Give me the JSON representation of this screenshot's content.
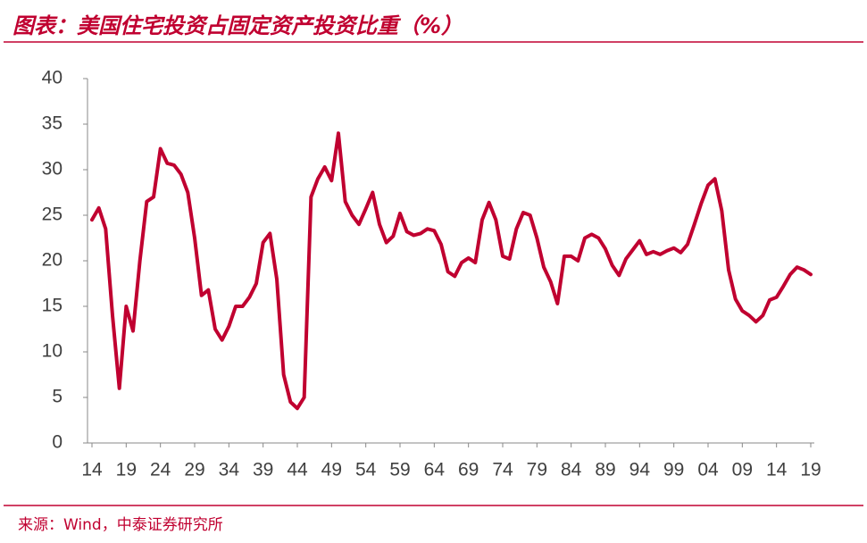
{
  "chart_data": {
    "type": "line",
    "title": "图表：美国住宅投资占固定资产投资比重（%）",
    "source": "来源：Wind，中泰证券研究所",
    "categories": [
      "14",
      null,
      null,
      null,
      null,
      "19",
      null,
      null,
      null,
      null,
      "24",
      null,
      null,
      null,
      null,
      "29",
      null,
      null,
      null,
      null,
      "34",
      null,
      null,
      null,
      null,
      "39",
      null,
      null,
      null,
      null,
      "44",
      null,
      null,
      null,
      null,
      "49",
      null,
      null,
      null,
      null,
      "54",
      null,
      null,
      null,
      null,
      "59",
      null,
      null,
      null,
      null,
      "64",
      null,
      null,
      null,
      null,
      "69",
      null,
      null,
      null,
      null,
      "74",
      null,
      null,
      null,
      null,
      "79",
      null,
      null,
      null,
      null,
      "84",
      null,
      null,
      null,
      null,
      "89",
      null,
      null,
      null,
      null,
      "94",
      null,
      null,
      null,
      null,
      "99",
      null,
      null,
      null,
      null,
      "04",
      null,
      null,
      null,
      null,
      "09",
      null,
      null,
      null,
      null,
      "14",
      null,
      null,
      null,
      null,
      "19"
    ],
    "values": [
      24.5,
      25.8,
      23.5,
      14,
      6,
      15,
      12.3,
      20,
      26.5,
      27,
      32.3,
      30.7,
      30.5,
      29.5,
      27.5,
      22.5,
      16.2,
      16.8,
      12.5,
      11.3,
      12.8,
      15,
      15,
      16,
      17.5,
      22,
      23,
      18,
      7.5,
      4.5,
      3.8,
      5,
      27,
      29,
      30.3,
      28.8,
      34,
      26.5,
      25,
      24,
      25.7,
      27.5,
      24,
      22,
      22.7,
      25.2,
      23.2,
      22.8,
      23,
      23.5,
      23.3,
      21.8,
      18.8,
      18.3,
      19.8,
      20.3,
      19.8,
      24.5,
      26.4,
      24.5,
      20.5,
      20.2,
      23.5,
      25.3,
      25,
      22.5,
      19.3,
      17.7,
      15.3,
      20.5,
      20.5,
      20,
      22.5,
      22.9,
      22.5,
      21.3,
      19.5,
      18.4,
      20.2,
      21.2,
      22.2,
      20.7,
      21,
      20.7,
      21.1,
      21.4,
      20.9,
      21.8,
      24,
      26.3,
      28.3,
      29,
      25.5,
      19,
      15.8,
      14.5,
      14,
      13.3,
      14,
      15.7,
      16,
      17.2,
      18.5,
      19.3,
      19,
      18.5
    ],
    "color": "#c00030",
    "ylim": [
      0,
      40
    ],
    "yticks": [
      0,
      5,
      10,
      15,
      20,
      25,
      30,
      35,
      40
    ],
    "grid": false
  }
}
